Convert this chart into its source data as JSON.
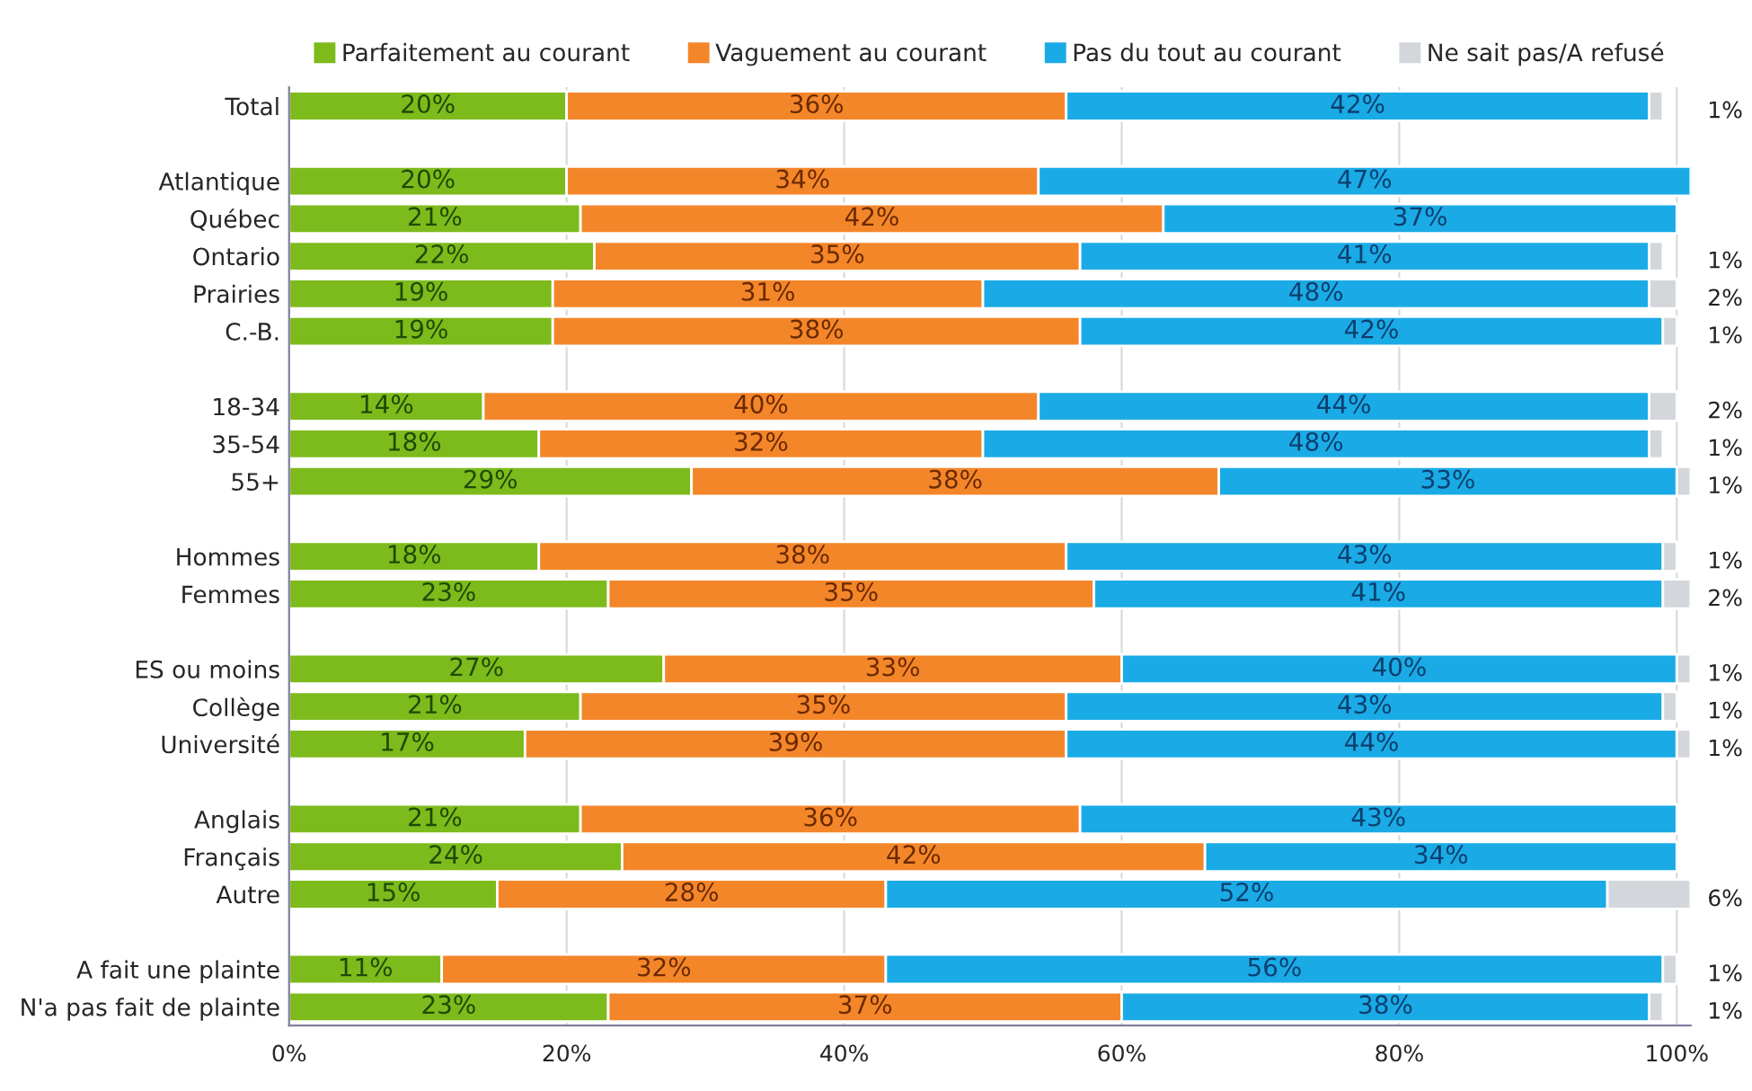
{
  "chart_data": {
    "type": "bar",
    "orientation": "horizontal",
    "stacked": true,
    "categories": [
      "Total",
      null,
      "Atlantique",
      "Québec",
      "Ontario",
      "Prairies",
      "C.-B.",
      null,
      "18-34",
      "35-54",
      "55+",
      null,
      "Hommes",
      "Femmes",
      null,
      "ES ou moins",
      "Collège",
      "Université",
      null,
      "Anglais",
      "Français",
      "Autre",
      null,
      "A fait une plainte",
      "N'a pas fait de plainte"
    ],
    "series": [
      {
        "name": "Parfaitement au courant",
        "color": "#7dbb1c",
        "values": [
          20,
          null,
          20,
          21,
          22,
          19,
          19,
          null,
          14,
          18,
          29,
          null,
          18,
          23,
          null,
          27,
          21,
          17,
          null,
          21,
          24,
          15,
          null,
          11,
          23
        ],
        "value_labels": [
          "20%",
          null,
          "20%",
          "21%",
          "22%",
          "19%",
          "19%",
          null,
          "14%",
          "18%",
          "29%",
          null,
          "18%",
          "23%",
          null,
          "27%",
          "21%",
          "17%",
          null,
          "21%",
          "24%",
          "15%",
          null,
          "11%",
          "23%"
        ]
      },
      {
        "name": "Vaguement au courant",
        "color": "#f4862a",
        "values": [
          36,
          null,
          34,
          42,
          35,
          31,
          38,
          null,
          40,
          32,
          38,
          null,
          38,
          35,
          null,
          33,
          35,
          39,
          null,
          36,
          42,
          28,
          null,
          32,
          37
        ],
        "value_labels": [
          "36%",
          null,
          "34%",
          "42%",
          "35%",
          "31%",
          "38%",
          null,
          "40%",
          "32%",
          "38%",
          null,
          "38%",
          "35%",
          null,
          "33%",
          "35%",
          "39%",
          null,
          "36%",
          "42%",
          "28%",
          null,
          "32%",
          "37%"
        ]
      },
      {
        "name": "Pas du tout au courant",
        "color": "#1aabe6",
        "values": [
          42,
          null,
          47,
          37,
          41,
          48,
          42,
          null,
          44,
          48,
          33,
          null,
          43,
          41,
          null,
          40,
          43,
          44,
          null,
          43,
          34,
          52,
          null,
          56,
          38
        ],
        "value_labels": [
          "42%",
          null,
          "47%",
          "37%",
          "41%",
          "48%",
          "42%",
          null,
          "44%",
          "48%",
          "33%",
          null,
          "43%",
          "41%",
          null,
          "40%",
          "43%",
          "44%",
          null,
          "43%",
          "34%",
          "52%",
          null,
          "56%",
          "38%"
        ]
      },
      {
        "name": "Ne sait pas/A refusé",
        "color": "#d3d7db",
        "values": [
          1,
          null,
          null,
          null,
          1,
          2,
          1,
          null,
          2,
          1,
          1,
          null,
          1,
          2,
          null,
          1,
          1,
          1,
          null,
          null,
          null,
          6,
          null,
          1,
          1
        ],
        "value_labels": [
          "1%",
          null,
          null,
          null,
          "1%",
          "2%",
          "1%",
          null,
          "2%",
          "1%",
          "1%",
          null,
          "1%",
          "2%",
          null,
          "1%",
          "1%",
          "1%",
          null,
          null,
          null,
          "6%",
          null,
          "1%",
          "1%"
        ]
      }
    ],
    "xlim": [
      0,
      101
    ],
    "xticks": [
      {
        "value": 0,
        "label": "0%"
      },
      {
        "value": 20,
        "label": "20%"
      },
      {
        "value": 40,
        "label": "40%"
      },
      {
        "value": 60,
        "label": "60%"
      },
      {
        "value": 80,
        "label": "80%"
      },
      {
        "value": 100,
        "label": "100%"
      }
    ],
    "grid": "x",
    "legend": "top"
  }
}
